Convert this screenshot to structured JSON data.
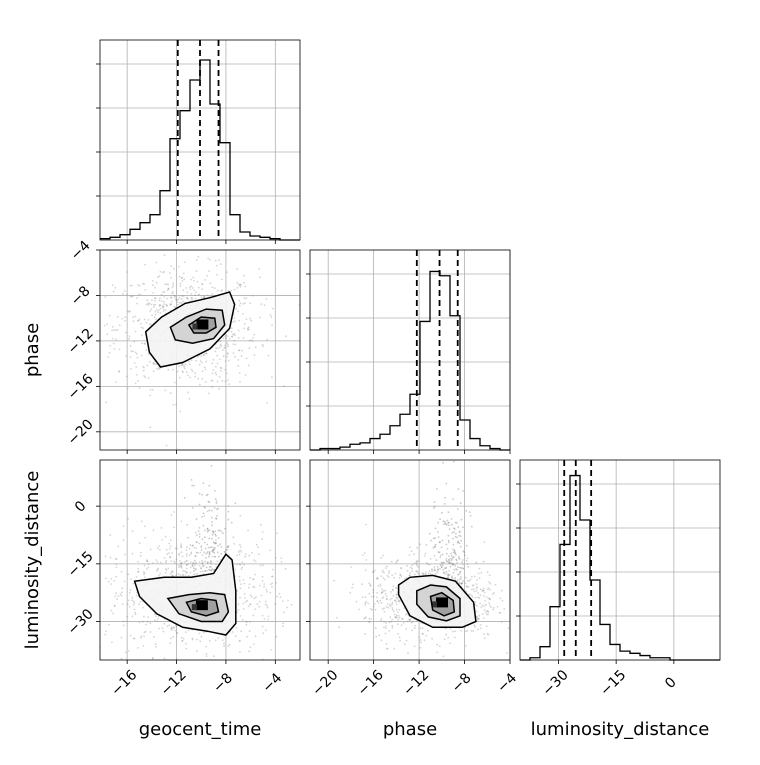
{
  "chart_data": {
    "type": "corner",
    "parameters": [
      "geocent_time",
      "phase",
      "luminosity_distance"
    ],
    "axis_labels": {
      "x": [
        "geocent_time",
        "phase",
        "luminosity_distance"
      ],
      "y": [
        "phase",
        "luminosity_distance"
      ]
    },
    "ranges": {
      "geocent_time": [
        -18.2,
        -2.0
      ],
      "phase": [
        -21.6,
        -4.0
      ],
      "luminosity_distance": [
        -40.0,
        12.0
      ]
    },
    "ticks": {
      "geocent_time": {
        "values": [
          -16,
          -12,
          -8,
          -4
        ],
        "labels": [
          "−16",
          "−12",
          "−8",
          "−4"
        ]
      },
      "phase": {
        "values": [
          -20,
          -16,
          -12,
          -8,
          -4
        ],
        "labels": [
          "−20",
          "−16",
          "−12",
          "−8",
          "−4"
        ]
      },
      "phase_y": {
        "values": [
          -20,
          -16,
          -12,
          -8,
          -4
        ],
        "labels": [
          "−20",
          "−16",
          "−12",
          "−8",
          "−4"
        ]
      },
      "luminosity_distance": {
        "values": [
          -30,
          -15,
          0
        ],
        "labels": [
          "−30",
          "−15",
          "0"
        ]
      },
      "luminosity_distance_y": {
        "values": [
          -30,
          -15,
          0
        ],
        "labels": [
          "−30",
          "−15",
          "0"
        ]
      }
    },
    "quantiles": {
      "geocent_time": [
        -11.9,
        -10.1,
        -8.6
      ],
      "phase": [
        -12.2,
        -10.2,
        -8.6
      ],
      "luminosity_distance": [
        -28.5,
        -25.5,
        -21.5
      ]
    },
    "histograms": [
      {
        "param": "geocent_time",
        "edges": [
          -18.2,
          -17.39,
          -16.58,
          -15.77,
          -14.96,
          -14.15,
          -13.34,
          -12.53,
          -11.72,
          -10.91,
          -10.1,
          -9.29,
          -8.48,
          -7.67,
          -6.86,
          -6.05,
          -5.24,
          -4.43,
          -3.62,
          -2.81,
          -2.0
        ],
        "counts": [
          1,
          2,
          4,
          8,
          13,
          19,
          37,
          76,
          97,
          120,
          135,
          102,
          73,
          19,
          6,
          3,
          2,
          1,
          0,
          0
        ],
        "ylim": [
          0,
          150
        ]
      },
      {
        "param": "phase",
        "edges": [
          -21.6,
          -20.72,
          -19.84,
          -18.96,
          -18.08,
          -17.2,
          -16.32,
          -15.44,
          -14.56,
          -13.68,
          -12.8,
          -11.92,
          -11.04,
          -10.16,
          -9.28,
          -8.4,
          -7.52,
          -6.64,
          -5.76,
          -4.88,
          -4.0
        ],
        "counts": [
          0,
          1,
          1,
          2,
          4,
          5,
          8,
          11,
          17,
          25,
          39,
          90,
          125,
          122,
          94,
          21,
          8,
          3,
          1,
          0
        ],
        "ylim": [
          0,
          140
        ]
      },
      {
        "param": "luminosity_distance",
        "edges": [
          -40.0,
          -37.4,
          -34.8,
          -32.2,
          -29.6,
          -27.0,
          -24.4,
          -21.8,
          -19.2,
          -16.6,
          -14.0,
          -11.4,
          -8.8,
          -6.2,
          -3.6,
          -1.0,
          1.6,
          4.2,
          6.8,
          9.4,
          12.0
        ],
        "counts": [
          0,
          1,
          6,
          24,
          52,
          83,
          63,
          36,
          16,
          7,
          4,
          3,
          2,
          1,
          1,
          0,
          0,
          0,
          0,
          0
        ],
        "ylim": [
          0,
          90
        ]
      }
    ],
    "scatter_panels": [
      {
        "x": "geocent_time",
        "y": "phase",
        "contours": [
          [
            [
              -14.5,
              -11.2
            ],
            [
              -13.2,
              -9.9
            ],
            [
              -11.3,
              -8.7
            ],
            [
              -9.3,
              -8.2
            ],
            [
              -7.7,
              -7.7
            ],
            [
              -7.3,
              -8.8
            ],
            [
              -7.7,
              -10.9
            ],
            [
              -9.3,
              -12.7
            ],
            [
              -11.5,
              -13.9
            ],
            [
              -13.3,
              -14.3
            ],
            [
              -14.2,
              -13.0
            ],
            [
              -14.5,
              -11.2
            ]
          ],
          [
            [
              -12.5,
              -10.8
            ],
            [
              -11.2,
              -9.9
            ],
            [
              -9.6,
              -9.2
            ],
            [
              -8.3,
              -9.3
            ],
            [
              -8.1,
              -10.6
            ],
            [
              -9.0,
              -11.8
            ],
            [
              -10.7,
              -12.2
            ],
            [
              -12.1,
              -11.9
            ],
            [
              -12.5,
              -10.8
            ]
          ],
          [
            [
              -11.0,
              -10.6
            ],
            [
              -10.0,
              -9.9
            ],
            [
              -8.9,
              -10.0
            ],
            [
              -8.8,
              -10.8
            ],
            [
              -9.6,
              -11.3
            ],
            [
              -10.6,
              -11.3
            ],
            [
              -11.0,
              -10.6
            ]
          ]
        ]
      },
      {
        "x": "geocent_time",
        "y": "luminosity_distance",
        "contours": [
          [
            [
              -15.4,
              -19.5
            ],
            [
              -13.0,
              -18.5
            ],
            [
              -10.8,
              -18.5
            ],
            [
              -9.0,
              -17.5
            ],
            [
              -8.0,
              -12.5
            ],
            [
              -7.5,
              -14.0
            ],
            [
              -7.2,
              -22.0
            ],
            [
              -7.2,
              -30.5
            ],
            [
              -8.0,
              -33.5
            ],
            [
              -9.5,
              -32.5
            ],
            [
              -11.5,
              -31.5
            ],
            [
              -13.6,
              -28.0
            ],
            [
              -15.0,
              -23.5
            ],
            [
              -15.4,
              -19.5
            ]
          ],
          [
            [
              -12.7,
              -24.0
            ],
            [
              -11.0,
              -23.0
            ],
            [
              -9.3,
              -22.5
            ],
            [
              -8.1,
              -23.0
            ],
            [
              -7.8,
              -27.5
            ],
            [
              -8.3,
              -30.0
            ],
            [
              -10.0,
              -30.0
            ],
            [
              -11.8,
              -28.0
            ],
            [
              -12.7,
              -24.0
            ]
          ],
          [
            [
              -11.2,
              -25.0
            ],
            [
              -10.0,
              -24.0
            ],
            [
              -8.8,
              -24.5
            ],
            [
              -8.6,
              -27.5
            ],
            [
              -9.6,
              -28.5
            ],
            [
              -10.8,
              -27.5
            ],
            [
              -11.2,
              -25.0
            ]
          ]
        ]
      },
      {
        "x": "phase",
        "y": "luminosity_distance",
        "contours": [
          [
            [
              -13.8,
              -20.5
            ],
            [
              -12.8,
              -18.5
            ],
            [
              -10.8,
              -18.0
            ],
            [
              -8.8,
              -19.5
            ],
            [
              -7.2,
              -25.0
            ],
            [
              -7.0,
              -30.0
            ],
            [
              -8.2,
              -31.5
            ],
            [
              -10.8,
              -31.5
            ],
            [
              -12.8,
              -28.5
            ],
            [
              -13.8,
              -23.0
            ],
            [
              -13.8,
              -20.5
            ]
          ],
          [
            [
              -12.2,
              -22.0
            ],
            [
              -11.0,
              -20.5
            ],
            [
              -9.6,
              -21.0
            ],
            [
              -8.4,
              -24.0
            ],
            [
              -8.4,
              -28.5
            ],
            [
              -9.6,
              -29.8
            ],
            [
              -11.2,
              -28.8
            ],
            [
              -12.2,
              -25.5
            ],
            [
              -12.2,
              -22.0
            ]
          ],
          [
            [
              -11.0,
              -23.5
            ],
            [
              -10.0,
              -22.5
            ],
            [
              -9.0,
              -24.5
            ],
            [
              -8.9,
              -27.5
            ],
            [
              -9.8,
              -28.5
            ],
            [
              -10.8,
              -27.0
            ],
            [
              -11.0,
              -23.5
            ]
          ]
        ]
      }
    ]
  }
}
